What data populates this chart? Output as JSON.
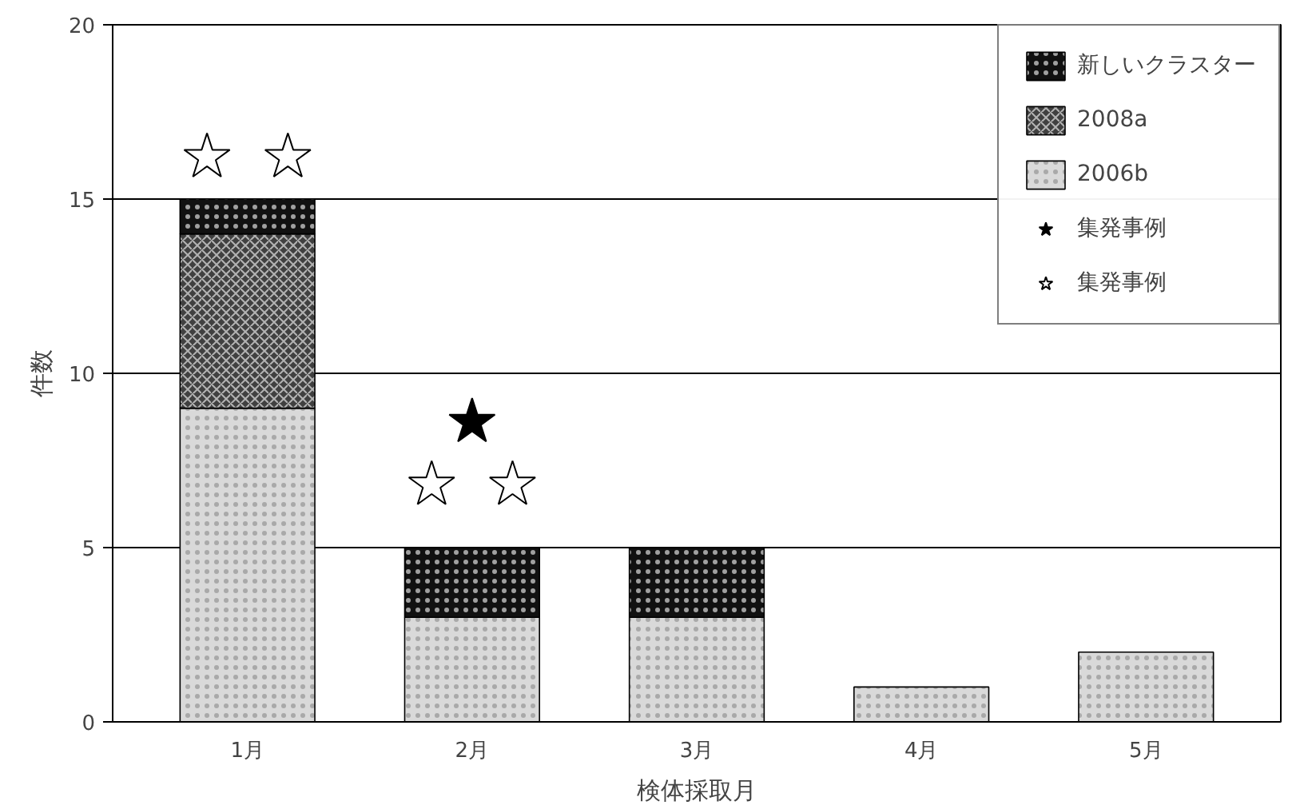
{
  "chart_data": {
    "type": "bar",
    "stacked": true,
    "xlabel": "検体採取月",
    "ylabel": "件数",
    "categories": [
      "1月",
      "2月",
      "3月",
      "4月",
      "5月"
    ],
    "series": [
      {
        "name": "2006b",
        "color": "#d9d9d9",
        "values": [
          9,
          3,
          3,
          1,
          2
        ]
      },
      {
        "name": "2008a",
        "color": "#404040",
        "values": [
          5,
          null,
          null,
          null,
          null
        ]
      },
      {
        "name": "新しいクラスター",
        "color": "#111111",
        "values": [
          1,
          2,
          2,
          null,
          null
        ]
      },
      {
        "name": "集発事例",
        "type": "scatter",
        "marker": "star",
        "color": "#000000",
        "x": [
          "2月"
        ],
        "values": [
          8.6
        ]
      },
      {
        "name": "集発事例",
        "type": "scatter",
        "marker": "star",
        "color": "#ffffff",
        "x": [
          "1月",
          "1月",
          "2月",
          "2月"
        ],
        "values": [
          16.2,
          16.2,
          6.8,
          6.8
        ]
      }
    ],
    "ylim": [
      0,
      20
    ],
    "yticks": [
      0,
      5,
      10,
      15,
      20
    ],
    "grid": "y",
    "legend": "top right"
  }
}
